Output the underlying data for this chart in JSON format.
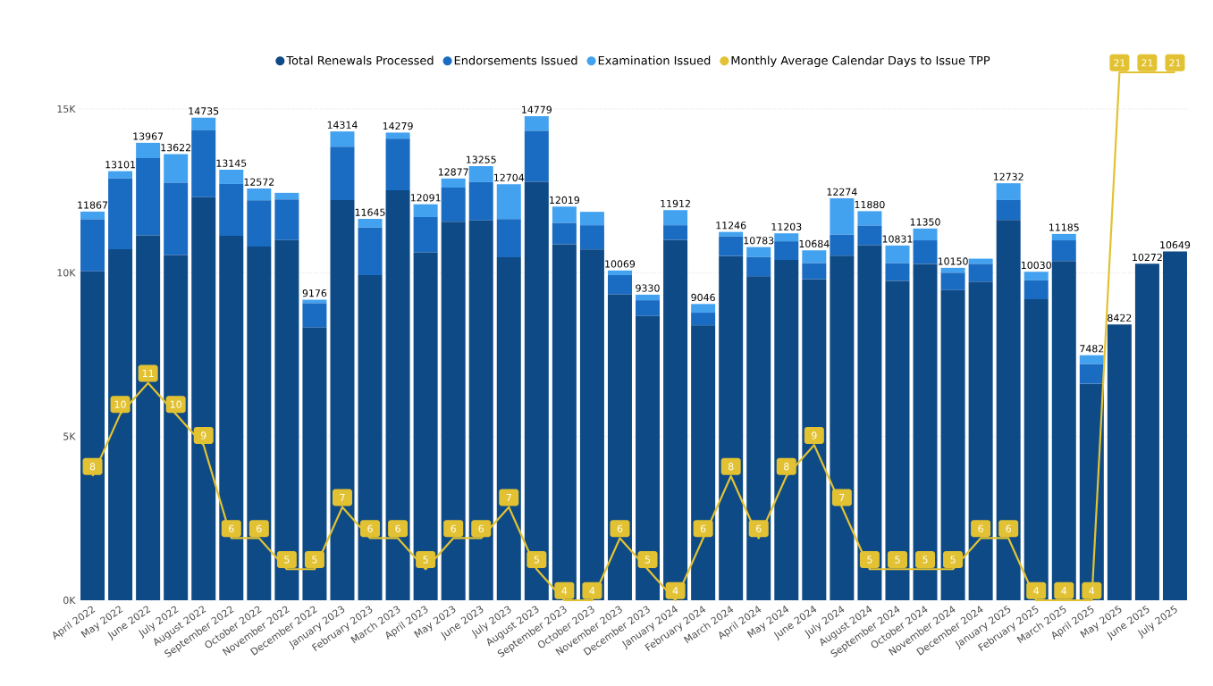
{
  "chart_data": {
    "type": "bar",
    "stacked": true,
    "legend": "top",
    "grid": "y",
    "categories": [
      "April 2022",
      "May 2022",
      "June 2022",
      "July 2022",
      "August 2022",
      "September 2022",
      "October 2022",
      "November 2022",
      "December 2022",
      "January 2023",
      "February 2023",
      "March 2023",
      "April 2023",
      "May 2023",
      "June 2023",
      "July 2023",
      "August 2023",
      "September 2023",
      "October 2023",
      "November 2023",
      "December 2023",
      "January 2024",
      "February 2024",
      "March 2024",
      "April 2024",
      "May 2024",
      "June 2024",
      "July 2024",
      "August 2024",
      "September 2024",
      "October 2024",
      "November 2024",
      "December 2024",
      "January 2025",
      "February 2025",
      "March 2025",
      "April 2025",
      "May 2025",
      "June 2025",
      "July 2025"
    ],
    "ylim": [
      0,
      15000
    ],
    "yticks": [
      {
        "value": 0,
        "label": "0K"
      },
      {
        "value": 5000,
        "label": "5K"
      },
      {
        "value": 10000,
        "label": "10K"
      },
      {
        "value": 15000,
        "label": "15K"
      }
    ],
    "series": [
      {
        "name": "Total Renewals Processed",
        "color": "#0e4a86",
        "values": [
          10040,
          10720,
          11140,
          10540,
          12310,
          11130,
          10800,
          11000,
          8330,
          12220,
          9930,
          12520,
          10620,
          11560,
          11600,
          10470,
          12780,
          10870,
          10710,
          9340,
          8680,
          11000,
          8390,
          10510,
          9890,
          10390,
          9800,
          10520,
          10840,
          9750,
          10270,
          9470,
          9720,
          11610,
          9190,
          10360,
          6610,
          8422,
          10272,
          10649
        ]
      },
      {
        "name": "Endorsements Issued",
        "color": "#1a6cc2",
        "values": [
          1590,
          2160,
          2360,
          2210,
          2040,
          1580,
          1410,
          1240,
          740,
          1630,
          1450,
          1570,
          1080,
          1040,
          1170,
          1170,
          1550,
          650,
          740,
          590,
          480,
          450,
          390,
          600,
          590,
          570,
          490,
          640,
          600,
          540,
          720,
          530,
          550,
          610,
          580,
          630,
          600,
          null,
          null,
          null
        ]
      },
      {
        "name": "Examination Issued",
        "color": "#42a2f0",
        "values": [
          237,
          221,
          467,
          872,
          385,
          435,
          362,
          200,
          106,
          464,
          265,
          189,
          391,
          277,
          485,
          1064,
          449,
          499,
          410,
          139,
          170,
          462,
          266,
          136,
          303,
          243,
          394,
          1114,
          440,
          541,
          360,
          150,
          160,
          512,
          260,
          195,
          272,
          null,
          null,
          null
        ]
      },
      {
        "name": "Monthly Average Calendar Days to Issue TPP",
        "type": "line",
        "axis": "y2",
        "color": "#e2c233",
        "values": [
          8,
          10,
          11,
          10,
          9,
          6,
          6,
          5,
          5,
          7,
          6,
          6,
          5,
          6,
          6,
          7,
          5,
          4,
          4,
          6,
          5,
          4,
          6,
          8,
          6,
          8,
          9,
          7,
          5,
          5,
          5,
          5,
          6,
          6,
          4,
          4,
          4,
          21,
          21,
          21
        ],
        "value_labels": [
          "8",
          "10",
          "11",
          "10",
          "9",
          "6",
          "6",
          "5",
          "5",
          "7",
          "6",
          "6",
          "5",
          "6",
          "6",
          "7",
          "5",
          "4",
          "4",
          "6",
          "5",
          "4",
          "6",
          "8",
          "6",
          "8",
          "9",
          "7",
          "5",
          "5",
          "5",
          "5",
          "6",
          "6",
          "4",
          "4",
          "4",
          "21",
          "21",
          "21"
        ]
      }
    ],
    "totals": [
      "11867",
      "13101",
      "13967",
      "13622",
      "14735",
      "13145",
      "12572",
      null,
      "9176",
      "14314",
      "11645",
      "14279",
      "12091",
      "12877",
      "13255",
      "12704",
      "14779",
      "12019",
      null,
      "10069",
      "9330",
      "11912",
      "9046",
      "11246",
      "10783",
      "11203",
      "10684",
      "12274",
      "11880",
      "10831",
      "11350",
      "10150",
      null,
      "12732",
      "10030",
      "11185",
      "7482",
      "8422",
      "10272",
      "10649"
    ]
  }
}
